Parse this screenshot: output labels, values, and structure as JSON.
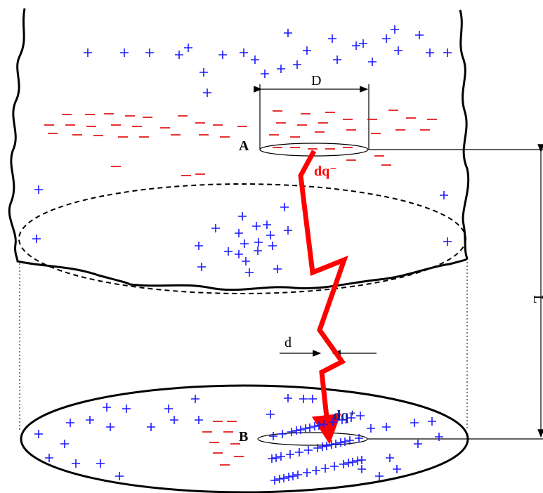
{
  "labels": {
    "D": "D",
    "A": "A",
    "dq_minus": "dq⁻",
    "L": "L",
    "d": "d",
    "B": "B",
    "dq_plus": "dq⁺"
  }
}
